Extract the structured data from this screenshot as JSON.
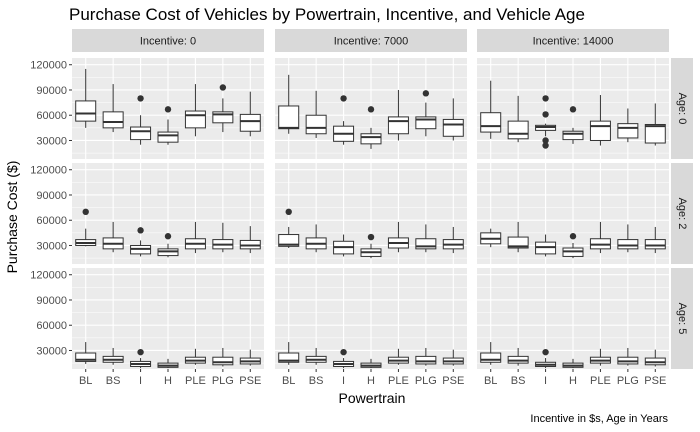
{
  "chart_data": {
    "type": "boxplot-facet-grid",
    "title": "Purchase Cost of Vehicles by Powertrain, Incentive, and Vehicle Age",
    "xlabel": "Powertrain",
    "ylabel": "Purchase Cost ($)",
    "caption": "Incentive in $s, Age in Years",
    "categories": [
      "BL",
      "BS",
      "I",
      "H",
      "PLE",
      "PLG",
      "PSE"
    ],
    "ylim": [
      8000,
      128000
    ],
    "yticks": [
      30000,
      60000,
      90000,
      120000
    ],
    "ytick_labels": [
      "30000",
      "60000",
      "90000",
      "120000"
    ],
    "col_facets": [
      "Incentive: 0",
      "Incentive: 7000",
      "Incentive: 14000"
    ],
    "row_facets": [
      "Age: 0",
      "Age: 2",
      "Age: 5"
    ],
    "colors": {
      "panel_bg": "#ebebeb",
      "grid": "#ffffff",
      "strip_bg": "#d9d9d9",
      "box_fill": "#ffffff",
      "box_line": "#333333"
    },
    "panels": [
      {
        "col": 0,
        "row": 0,
        "boxes": [
          {
            "cat": "BL",
            "min": 45000,
            "q1": 53000,
            "median": 62000,
            "q3": 77000,
            "max": 115000,
            "outliers": []
          },
          {
            "cat": "BS",
            "min": 40000,
            "q1": 45000,
            "median": 52000,
            "q3": 64000,
            "max": 97000,
            "outliers": []
          },
          {
            "cat": "I",
            "min": 25000,
            "q1": 31000,
            "median": 41000,
            "q3": 46000,
            "max": 60000,
            "outliers": [
              80000
            ]
          },
          {
            "cat": "H",
            "min": 25000,
            "q1": 28000,
            "median": 36000,
            "q3": 40000,
            "max": 55000,
            "outliers": [
              67000
            ]
          },
          {
            "cat": "PLE",
            "min": 35000,
            "q1": 45000,
            "median": 60000,
            "q3": 65000,
            "max": 97000,
            "outliers": []
          },
          {
            "cat": "PLG",
            "min": 40000,
            "q1": 51000,
            "median": 61000,
            "q3": 64000,
            "max": 80000,
            "outliers": [
              93000
            ]
          },
          {
            "cat": "PSE",
            "min": 35000,
            "q1": 41000,
            "median": 53000,
            "q3": 61000,
            "max": 88000,
            "outliers": []
          }
        ]
      },
      {
        "col": 1,
        "row": 0,
        "boxes": [
          {
            "cat": "BL",
            "min": 38000,
            "q1": 44000,
            "median": 45000,
            "q3": 71000,
            "max": 108000,
            "outliers": []
          },
          {
            "cat": "BS",
            "min": 33000,
            "q1": 38000,
            "median": 45000,
            "q3": 60000,
            "max": 89000,
            "outliers": []
          },
          {
            "cat": "I",
            "min": 25000,
            "q1": 29000,
            "median": 38000,
            "q3": 47000,
            "max": 53000,
            "outliers": [
              80000
            ]
          },
          {
            "cat": "H",
            "min": 20000,
            "q1": 26000,
            "median": 34000,
            "q3": 38000,
            "max": 45000,
            "outliers": [
              67000
            ]
          },
          {
            "cat": "PLE",
            "min": 30000,
            "q1": 38000,
            "median": 53000,
            "q3": 58000,
            "max": 90000,
            "outliers": []
          },
          {
            "cat": "PLG",
            "min": 35000,
            "q1": 44000,
            "median": 55000,
            "q3": 58000,
            "max": 75000,
            "outliers": [
              86000
            ]
          },
          {
            "cat": "PSE",
            "min": 30000,
            "q1": 35000,
            "median": 49000,
            "q3": 55000,
            "max": 80000,
            "outliers": []
          }
        ]
      },
      {
        "col": 2,
        "row": 0,
        "boxes": [
          {
            "cat": "BL",
            "min": 32000,
            "q1": 40000,
            "median": 47000,
            "q3": 63000,
            "max": 101000,
            "outliers": []
          },
          {
            "cat": "BS",
            "min": 28000,
            "q1": 32000,
            "median": 38000,
            "q3": 53000,
            "max": 83000,
            "outliers": []
          },
          {
            "cat": "I",
            "min": 35000,
            "q1": 42000,
            "median": 46000,
            "q3": 48000,
            "max": 50000,
            "outliers": [
              80000,
              61000,
              30000,
              24000
            ]
          },
          {
            "cat": "H",
            "min": 26000,
            "q1": 31000,
            "median": 38000,
            "q3": 41000,
            "max": 45000,
            "outliers": [
              67000
            ]
          },
          {
            "cat": "PLE",
            "min": 24000,
            "q1": 30000,
            "median": 47000,
            "q3": 53000,
            "max": 84000,
            "outliers": []
          },
          {
            "cat": "PLG",
            "min": 28000,
            "q1": 33000,
            "median": 45000,
            "q3": 50000,
            "max": 68000,
            "outliers": []
          },
          {
            "cat": "PSE",
            "min": 24000,
            "q1": 27000,
            "median": 47000,
            "q3": 49000,
            "max": 74000,
            "outliers": []
          }
        ]
      },
      {
        "col": 0,
        "row": 1,
        "boxes": [
          {
            "cat": "BL",
            "min": 29000,
            "q1": 30000,
            "median": 33000,
            "q3": 37000,
            "max": 50000,
            "outliers": [
              70000
            ]
          },
          {
            "cat": "BS",
            "min": 22000,
            "q1": 26000,
            "median": 32000,
            "q3": 39000,
            "max": 58000,
            "outliers": []
          },
          {
            "cat": "I",
            "min": 17000,
            "q1": 20000,
            "median": 26000,
            "q3": 30000,
            "max": 36000,
            "outliers": [
              48000
            ]
          },
          {
            "cat": "H",
            "min": 16000,
            "q1": 18000,
            "median": 23000,
            "q3": 26000,
            "max": 32000,
            "outliers": [
              41000
            ]
          },
          {
            "cat": "PLE",
            "min": 21000,
            "q1": 26000,
            "median": 32000,
            "q3": 38000,
            "max": 58000,
            "outliers": []
          },
          {
            "cat": "PLG",
            "min": 22000,
            "q1": 26000,
            "median": 31000,
            "q3": 37000,
            "max": 57000,
            "outliers": []
          },
          {
            "cat": "PSE",
            "min": 21000,
            "q1": 26000,
            "median": 30000,
            "q3": 36000,
            "max": 53000,
            "outliers": []
          }
        ]
      },
      {
        "col": 1,
        "row": 1,
        "boxes": [
          {
            "cat": "BL",
            "min": 27000,
            "q1": 29000,
            "median": 31000,
            "q3": 43000,
            "max": 52000,
            "outliers": [
              70000
            ]
          },
          {
            "cat": "BS",
            "min": 22000,
            "q1": 26000,
            "median": 32000,
            "q3": 39000,
            "max": 55000,
            "outliers": []
          },
          {
            "cat": "I",
            "min": 17000,
            "q1": 20000,
            "median": 28000,
            "q3": 35000,
            "max": 43000,
            "outliers": []
          },
          {
            "cat": "H",
            "min": 15000,
            "q1": 17000,
            "median": 22000,
            "q3": 26000,
            "max": 32000,
            "outliers": [
              40000
            ]
          },
          {
            "cat": "PLE",
            "min": 22000,
            "q1": 27000,
            "median": 33000,
            "q3": 39000,
            "max": 58000,
            "outliers": []
          },
          {
            "cat": "PLG",
            "min": 22000,
            "q1": 26000,
            "median": 29000,
            "q3": 38000,
            "max": 55000,
            "outliers": []
          },
          {
            "cat": "PSE",
            "min": 21000,
            "q1": 26000,
            "median": 31000,
            "q3": 37000,
            "max": 52000,
            "outliers": []
          }
        ]
      },
      {
        "col": 2,
        "row": 1,
        "boxes": [
          {
            "cat": "BL",
            "min": 28000,
            "q1": 32000,
            "median": 38000,
            "q3": 45000,
            "max": 50000,
            "outliers": []
          },
          {
            "cat": "BS",
            "min": 22000,
            "q1": 27000,
            "median": 29000,
            "q3": 40000,
            "max": 58000,
            "outliers": []
          },
          {
            "cat": "I",
            "min": 17000,
            "q1": 20000,
            "median": 28000,
            "q3": 34000,
            "max": 43000,
            "outliers": []
          },
          {
            "cat": "H",
            "min": 15000,
            "q1": 17000,
            "median": 23000,
            "q3": 27000,
            "max": 33000,
            "outliers": [
              41000
            ]
          },
          {
            "cat": "PLE",
            "min": 21000,
            "q1": 26000,
            "median": 31000,
            "q3": 38000,
            "max": 58000,
            "outliers": []
          },
          {
            "cat": "PLG",
            "min": 22000,
            "q1": 26000,
            "median": 30000,
            "q3": 37000,
            "max": 55000,
            "outliers": []
          },
          {
            "cat": "PSE",
            "min": 21000,
            "q1": 26000,
            "median": 30000,
            "q3": 37000,
            "max": 52000,
            "outliers": []
          }
        ]
      },
      {
        "col": 0,
        "row": 2,
        "boxes": [
          {
            "cat": "BL",
            "min": 14000,
            "q1": 17000,
            "median": 19000,
            "q3": 27000,
            "max": 40000,
            "outliers": []
          },
          {
            "cat": "BS",
            "min": 13000,
            "q1": 16000,
            "median": 19000,
            "q3": 23000,
            "max": 33000,
            "outliers": []
          },
          {
            "cat": "I",
            "min": 9000,
            "q1": 11000,
            "median": 14000,
            "q3": 17000,
            "max": 21000,
            "outliers": [
              28000
            ]
          },
          {
            "cat": "H",
            "min": 9000,
            "q1": 10000,
            "median": 12000,
            "q3": 15000,
            "max": 20000,
            "outliers": []
          },
          {
            "cat": "PLE",
            "min": 13000,
            "q1": 15000,
            "median": 18000,
            "q3": 22000,
            "max": 32000,
            "outliers": []
          },
          {
            "cat": "PLG",
            "min": 11000,
            "q1": 13000,
            "median": 16000,
            "q3": 22000,
            "max": 33000,
            "outliers": []
          },
          {
            "cat": "PSE",
            "min": 12000,
            "q1": 14000,
            "median": 17000,
            "q3": 21000,
            "max": 31000,
            "outliers": []
          }
        ]
      },
      {
        "col": 1,
        "row": 2,
        "boxes": [
          {
            "cat": "BL",
            "min": 13000,
            "q1": 16000,
            "median": 18000,
            "q3": 27000,
            "max": 40000,
            "outliers": []
          },
          {
            "cat": "BS",
            "min": 13000,
            "q1": 16000,
            "median": 19000,
            "q3": 23000,
            "max": 33000,
            "outliers": []
          },
          {
            "cat": "I",
            "min": 9000,
            "q1": 11000,
            "median": 14000,
            "q3": 17000,
            "max": 21000,
            "outliers": [
              28000
            ]
          },
          {
            "cat": "H",
            "min": 9000,
            "q1": 10000,
            "median": 12000,
            "q3": 15000,
            "max": 20000,
            "outliers": []
          },
          {
            "cat": "PLE",
            "min": 13000,
            "q1": 15000,
            "median": 18000,
            "q3": 22000,
            "max": 32000,
            "outliers": []
          },
          {
            "cat": "PLG",
            "min": 12000,
            "q1": 14000,
            "median": 17000,
            "q3": 23000,
            "max": 33000,
            "outliers": []
          },
          {
            "cat": "PSE",
            "min": 12000,
            "q1": 14000,
            "median": 17000,
            "q3": 21000,
            "max": 31000,
            "outliers": []
          }
        ]
      },
      {
        "col": 2,
        "row": 2,
        "boxes": [
          {
            "cat": "BL",
            "min": 13000,
            "q1": 16000,
            "median": 19000,
            "q3": 27000,
            "max": 40000,
            "outliers": []
          },
          {
            "cat": "BS",
            "min": 12000,
            "q1": 15000,
            "median": 18000,
            "q3": 23000,
            "max": 33000,
            "outliers": []
          },
          {
            "cat": "I",
            "min": 9000,
            "q1": 11000,
            "median": 13000,
            "q3": 16000,
            "max": 21000,
            "outliers": [
              28000
            ]
          },
          {
            "cat": "H",
            "min": 9000,
            "q1": 10000,
            "median": 12000,
            "q3": 15000,
            "max": 20000,
            "outliers": []
          },
          {
            "cat": "PLE",
            "min": 12000,
            "q1": 15000,
            "median": 18000,
            "q3": 22000,
            "max": 32000,
            "outliers": []
          },
          {
            "cat": "PLG",
            "min": 12000,
            "q1": 14000,
            "median": 17000,
            "q3": 22000,
            "max": 33000,
            "outliers": []
          },
          {
            "cat": "PSE",
            "min": 11000,
            "q1": 13000,
            "median": 16000,
            "q3": 21000,
            "max": 31000,
            "outliers": []
          }
        ]
      }
    ]
  }
}
